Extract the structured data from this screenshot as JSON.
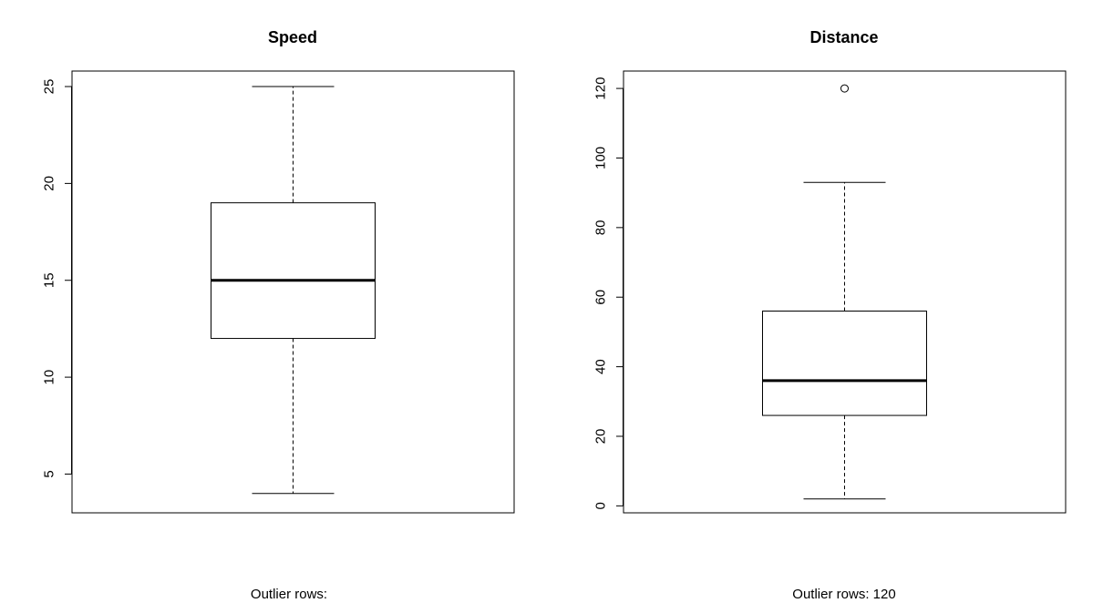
{
  "chart_data": [
    {
      "type": "boxplot",
      "title": "Speed",
      "ylim": [
        3,
        25.8
      ],
      "yticks": [
        5,
        10,
        15,
        20,
        25
      ],
      "ytick_labels": [
        "5",
        "10",
        "15",
        "20",
        "25"
      ],
      "box": {
        "whisker_low": 4,
        "q1": 12,
        "median": 15,
        "q3": 19,
        "whisker_high": 25
      },
      "outliers": [],
      "caption": "Outlier rows:"
    },
    {
      "type": "boxplot",
      "title": "Distance",
      "ylim": [
        -2,
        125
      ],
      "yticks": [
        0,
        20,
        40,
        60,
        80,
        100,
        120
      ],
      "ytick_labels": [
        "0",
        "20",
        "40",
        "60",
        "80",
        "100",
        "120"
      ],
      "box": {
        "whisker_low": 2,
        "q1": 26,
        "median": 36,
        "q3": 56,
        "whisker_high": 93
      },
      "outliers": [
        120
      ],
      "caption": "Outlier rows:  120"
    }
  ]
}
